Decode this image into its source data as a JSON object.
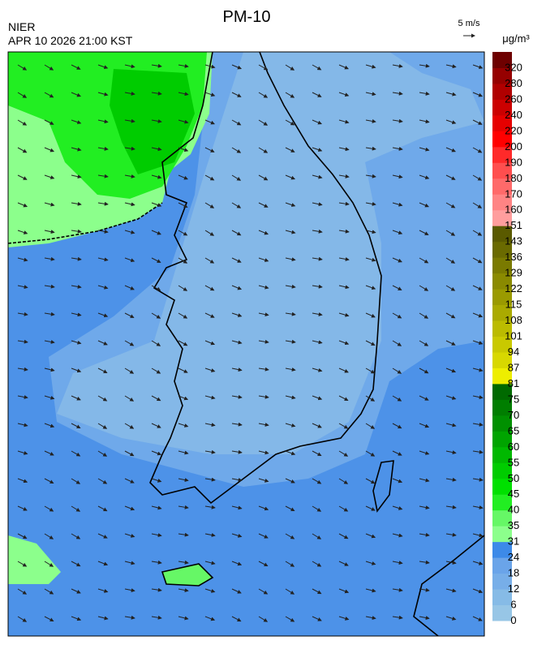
{
  "header": {
    "title": "PM-10",
    "agency": "NIER",
    "timestamp": "APR 10 2026 21:00 KST",
    "wind_scale": "5 m/s"
  },
  "colorbar": {
    "unit": "μg/m³",
    "levels": [
      0,
      6,
      12,
      18,
      24,
      31,
      35,
      40,
      45,
      50,
      55,
      60,
      65,
      70,
      75,
      81,
      87,
      94,
      101,
      108,
      115,
      122,
      129,
      136,
      143,
      151,
      160,
      170,
      180,
      190,
      200,
      220,
      240,
      260,
      280,
      320
    ],
    "colors": [
      "#97c6e6",
      "#86bbe6",
      "#77aee8",
      "#6aa4e9",
      "#3d8ae8",
      "#8cff8c",
      "#66f766",
      "#22ee22",
      "#00e000",
      "#00cc00",
      "#00b800",
      "#00a400",
      "#009000",
      "#007e00",
      "#006a00",
      "#eeee00",
      "#d8d800",
      "#c9c900",
      "#bbbb00",
      "#aaaa00",
      "#9a9a00",
      "#8a8a00",
      "#7a7a00",
      "#6a6a00",
      "#5a5a00",
      "#ff9e9e",
      "#ff8484",
      "#ff6a6a",
      "#ff4e4e",
      "#ff2a2a",
      "#ff0000",
      "#e60000",
      "#cc0000",
      "#b00000",
      "#960000",
      "#6e0000"
    ]
  }
}
